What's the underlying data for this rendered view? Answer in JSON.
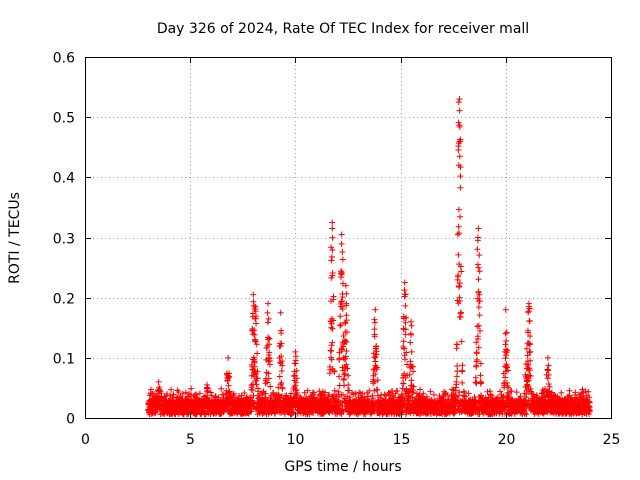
{
  "chart_data": {
    "type": "scatter",
    "title": "Day 326 of 2024, Rate Of TEC Index for receiver mall",
    "xlabel": "GPS time / hours",
    "ylabel": "ROTI / TECUs",
    "xlim": [
      0,
      25
    ],
    "ylim": [
      0,
      0.6
    ],
    "xticks": [
      0,
      5,
      10,
      15,
      20,
      25
    ],
    "xtick_labels": [
      "0",
      "5",
      "10",
      "15",
      "20",
      "25"
    ],
    "yticks": [
      0,
      0.1,
      0.2,
      0.3,
      0.4,
      0.5,
      0.6
    ],
    "ytick_labels": [
      "0",
      "0.1",
      "0.2",
      "0.3",
      "0.4",
      "0.5",
      "0.6"
    ],
    "grid": true,
    "marker": "plus",
    "marker_color": "#ff0000",
    "data_time_range": [
      3.0,
      24.0
    ],
    "baseline_roti": 0.02,
    "series": [
      {
        "name": "ROTI",
        "spikes": [
          {
            "x": 3.5,
            "y": 0.06
          },
          {
            "x": 5.8,
            "y": 0.055
          },
          {
            "x": 6.8,
            "y": 0.1
          },
          {
            "x": 8.0,
            "y": 0.205
          },
          {
            "x": 8.1,
            "y": 0.185
          },
          {
            "x": 8.7,
            "y": 0.19
          },
          {
            "x": 9.3,
            "y": 0.175
          },
          {
            "x": 10.0,
            "y": 0.11
          },
          {
            "x": 11.75,
            "y": 0.325
          },
          {
            "x": 12.2,
            "y": 0.305
          },
          {
            "x": 12.4,
            "y": 0.22
          },
          {
            "x": 13.8,
            "y": 0.18
          },
          {
            "x": 15.2,
            "y": 0.225
          },
          {
            "x": 15.5,
            "y": 0.16
          },
          {
            "x": 17.8,
            "y": 0.53
          },
          {
            "x": 18.7,
            "y": 0.315
          },
          {
            "x": 20.0,
            "y": 0.18
          },
          {
            "x": 21.1,
            "y": 0.19
          },
          {
            "x": 21.0,
            "y": 0.115
          },
          {
            "x": 22.0,
            "y": 0.1
          }
        ]
      }
    ]
  }
}
